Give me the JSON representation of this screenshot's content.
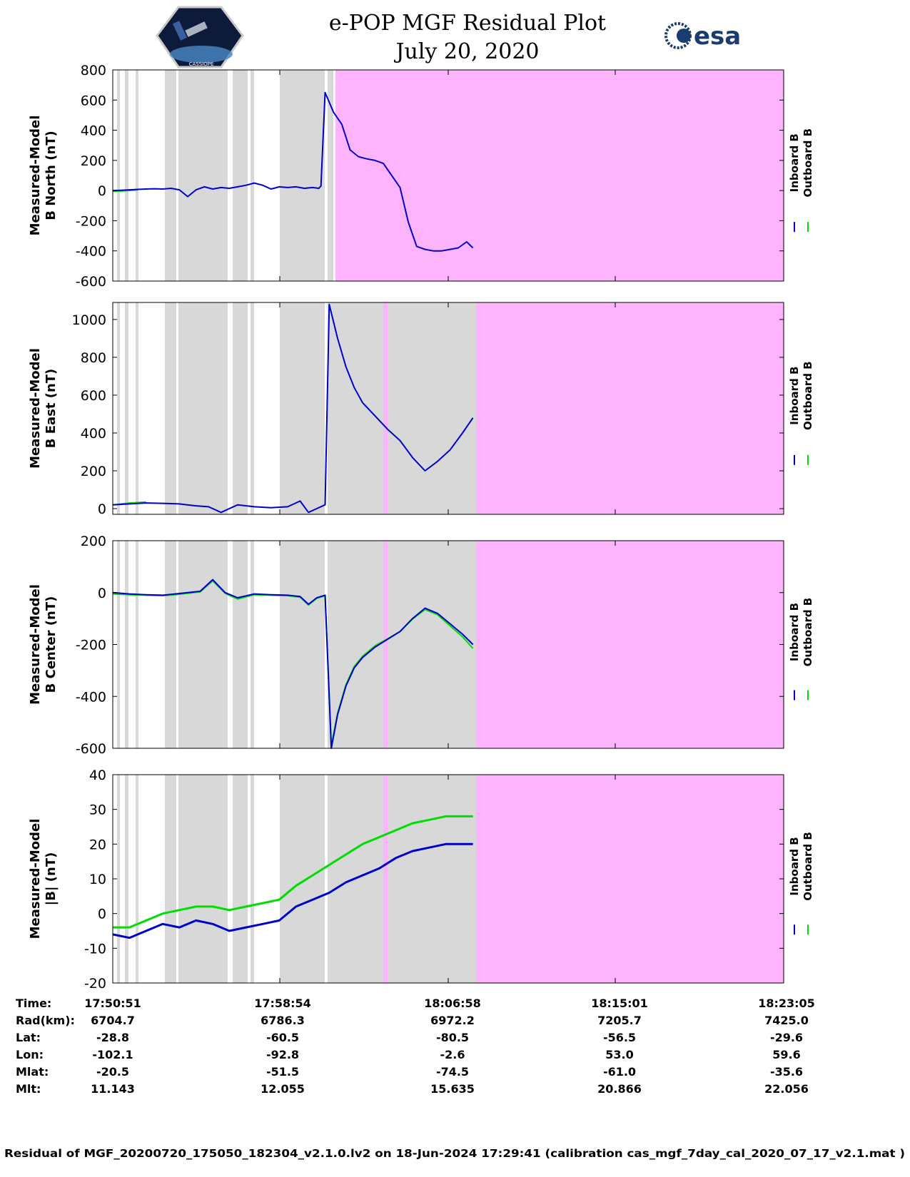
{
  "title": "e-POP MGF Residual Plot",
  "subtitle": "July 20, 2020",
  "logos": {
    "left": "CASSIOPE",
    "right": "esa"
  },
  "chart_data": [
    {
      "type": "line",
      "ylabel_line1": "Measured-Model",
      "ylabel_line2": "B North (nT)",
      "ylim": [
        -600,
        800
      ],
      "yticks": [
        800,
        600,
        400,
        200,
        0,
        -200,
        -400,
        -600
      ],
      "legend": [
        "Inboard B",
        "Outboard B"
      ],
      "series": [
        {
          "name": "Inboard B",
          "color": "#0000cc",
          "t": [
            0,
            0.4,
            0.8,
            1.2,
            1.6,
            2.0,
            2.4,
            2.8,
            3.2,
            3.6,
            4.0,
            4.4,
            4.8,
            5.2,
            5.6,
            6.0,
            6.4,
            6.8,
            7.2,
            7.6,
            8.0,
            8.4,
            8.8,
            9.2,
            9.6,
            9.9,
            10.0,
            10.2,
            10.6,
            11.0,
            11.4,
            11.8,
            12.2,
            12.6,
            13.0,
            13.4,
            13.8,
            14.2,
            14.6,
            15.0,
            15.4,
            15.8,
            16.2,
            16.6,
            17.0,
            17.3
          ],
          "v": [
            0,
            2,
            5,
            8,
            10,
            12,
            10,
            15,
            5,
            -40,
            5,
            25,
            10,
            20,
            15,
            25,
            35,
            50,
            35,
            10,
            25,
            20,
            25,
            15,
            20,
            15,
            30,
            650,
            520,
            440,
            270,
            225,
            210,
            200,
            180,
            100,
            20,
            -210,
            -370,
            -390,
            -400,
            -400,
            -390,
            -380,
            -340,
            -380
          ]
        },
        {
          "name": "Outboard B",
          "color": "#00dd00",
          "t": [
            0,
            0.4,
            0.8,
            1.2
          ],
          "v": [
            -5,
            -3,
            0,
            5
          ]
        }
      ]
    },
    {
      "type": "line",
      "ylabel_line1": "Measured-Model",
      "ylabel_line2": "B East (nT)",
      "ylim": [
        -30,
        1090
      ],
      "yticks": [
        1000,
        800,
        600,
        400,
        200,
        0
      ],
      "legend": [
        "Inboard B",
        "Outboard B"
      ],
      "series": [
        {
          "name": "Inboard B",
          "color": "#0000cc",
          "t": [
            0,
            0.8,
            1.6,
            2.4,
            3.2,
            4.0,
            4.6,
            5.2,
            6.0,
            6.8,
            7.6,
            8.4,
            9.0,
            9.4,
            9.8,
            10.2,
            10.4,
            10.8,
            11.2,
            11.6,
            12.0,
            12.6,
            13.2,
            13.8,
            14.4,
            15.0,
            15.6,
            16.2,
            16.8,
            17.3
          ],
          "v": [
            20,
            25,
            30,
            28,
            25,
            15,
            10,
            -20,
            20,
            10,
            5,
            10,
            40,
            -20,
            0,
            20,
            1080,
            900,
            750,
            640,
            560,
            490,
            420,
            360,
            270,
            200,
            250,
            310,
            400,
            480
          ]
        },
        {
          "name": "Outboard B",
          "color": "#00dd00",
          "t": [
            0,
            0.8,
            1.6
          ],
          "v": [
            20,
            30,
            35
          ]
        }
      ]
    },
    {
      "type": "line",
      "ylabel_line1": "Measured-Model",
      "ylabel_line2": "B Center (nT)",
      "ylim": [
        -600,
        200
      ],
      "yticks": [
        200,
        0,
        -200,
        -400,
        -600
      ],
      "legend": [
        "Inboard B",
        "Outboard B"
      ],
      "series": [
        {
          "name": "Inboard B",
          "color": "#0000cc",
          "t": [
            0,
            0.8,
            1.6,
            2.4,
            3.0,
            3.6,
            4.2,
            4.8,
            5.4,
            6.0,
            6.8,
            7.6,
            8.4,
            9.0,
            9.4,
            9.8,
            10.2,
            10.5,
            10.8,
            11.2,
            11.6,
            12.0,
            12.6,
            13.2,
            13.8,
            14.4,
            15.0,
            15.6,
            16.2,
            16.8,
            17.3
          ],
          "v": [
            0,
            -5,
            -8,
            -10,
            -5,
            0,
            5,
            50,
            0,
            -20,
            -5,
            -8,
            -10,
            -15,
            -45,
            -20,
            -10,
            -600,
            -470,
            -360,
            -290,
            -250,
            -210,
            -180,
            -150,
            -100,
            -60,
            -80,
            -120,
            -160,
            -200
          ]
        },
        {
          "name": "Outboard B",
          "color": "#00dd00",
          "t": [
            0,
            0.8,
            1.6,
            2.4,
            3.0,
            3.6,
            4.2,
            4.8,
            5.4,
            6.0,
            6.8,
            7.6,
            8.4,
            9.0,
            9.4,
            9.8,
            10.2,
            10.5,
            10.8,
            11.2,
            11.6,
            12.0,
            12.6,
            13.2,
            13.8,
            14.4,
            15.0,
            15.6,
            16.2,
            16.8,
            17.3
          ],
          "v": [
            -5,
            -8,
            -10,
            -12,
            -8,
            -3,
            3,
            45,
            -3,
            -25,
            -8,
            -10,
            -12,
            -18,
            -48,
            -22,
            -12,
            -590,
            -465,
            -355,
            -285,
            -245,
            -205,
            -178,
            -150,
            -102,
            -65,
            -85,
            -128,
            -170,
            -215
          ]
        }
      ]
    },
    {
      "type": "line",
      "ylabel_line1": "Measured-Model",
      "ylabel_line2": "|B| (nT)",
      "ylim": [
        -20,
        40
      ],
      "yticks": [
        40,
        30,
        20,
        10,
        0,
        -10,
        -20
      ],
      "legend": [
        "Inboard B",
        "Outboard B"
      ],
      "series": [
        {
          "name": "Inboard B",
          "color": "#0000cc",
          "t": [
            0,
            0.8,
            1.6,
            2.4,
            3.2,
            4.0,
            4.8,
            5.6,
            6.4,
            7.2,
            8.0,
            8.8,
            9.6,
            10.4,
            11.2,
            12.0,
            12.8,
            13.6,
            14.4,
            15.2,
            16.0,
            16.8,
            17.3
          ],
          "v": [
            -6,
            -7,
            -5,
            -3,
            -4,
            -2,
            -3,
            -5,
            -4,
            -3,
            -2,
            2,
            4,
            6,
            9,
            11,
            13,
            16,
            18,
            19,
            20,
            20,
            20
          ]
        },
        {
          "name": "Outboard B",
          "color": "#00dd00",
          "t": [
            0,
            0.8,
            1.6,
            2.4,
            3.2,
            4.0,
            4.8,
            5.6,
            6.4,
            7.2,
            8.0,
            8.8,
            9.6,
            10.4,
            11.2,
            12.0,
            12.8,
            13.6,
            14.4,
            15.2,
            16.0,
            16.8,
            17.3
          ],
          "v": [
            -4,
            -4,
            -2,
            0,
            1,
            2,
            2,
            1,
            2,
            3,
            4,
            8,
            11,
            14,
            17,
            20,
            22,
            24,
            26,
            27,
            28,
            28,
            28
          ]
        }
      ]
    }
  ],
  "ephemeris": {
    "row_labels": [
      "Time:",
      "Rad(km):",
      "Lat:",
      "Lon:",
      "Mlat:",
      "Mlt:"
    ],
    "columns": [
      [
        "17:50:51",
        "6704.7",
        "-28.8",
        "-102.1",
        "-20.5",
        "11.143"
      ],
      [
        "17:58:54",
        "6786.3",
        "-60.5",
        "-92.8",
        "-51.5",
        "12.055"
      ],
      [
        "18:06:58",
        "6972.2",
        "-80.5",
        "-2.6",
        "-74.5",
        "15.635"
      ],
      [
        "18:15:01",
        "7205.7",
        "-56.5",
        "53.0",
        "-61.0",
        "20.866"
      ],
      [
        "18:23:05",
        "7425.0",
        "-29.6",
        "59.6",
        "-35.6",
        "22.056"
      ]
    ]
  },
  "footer": "Residual of MGF_20200720_175050_182304_v2.1.0.lv2 on 18-Jun-2024 17:29:41 (calibration cas_mgf_7day_cal_2020_07_17_v2.1.mat )",
  "colors": {
    "gray_band": "#d8d8d8",
    "pink_region": "#fdb4fd",
    "inboard": "#0000cc",
    "outboard": "#00dd00"
  }
}
